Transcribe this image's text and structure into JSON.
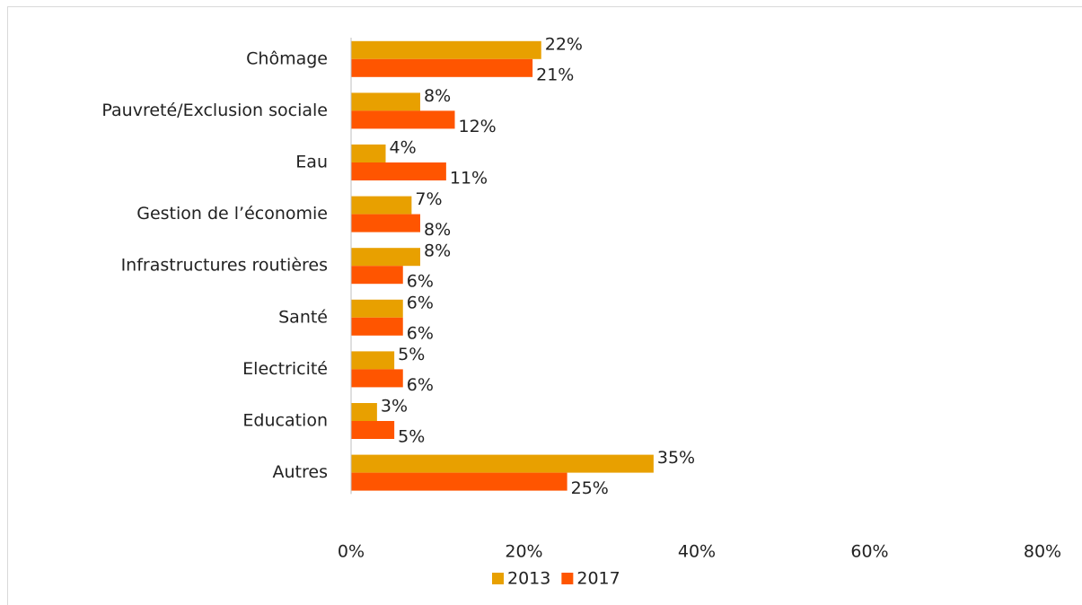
{
  "chart_data": {
    "type": "bar",
    "orientation": "horizontal",
    "categories": [
      "Chômage",
      "Pauvreté/Exclusion sociale",
      "Eau",
      "Gestion de l’économie",
      "Infrastructures routières",
      "Santé",
      "Electricité",
      "Education",
      "Autres"
    ],
    "series": [
      {
        "name": "2013",
        "color": "#e8a000",
        "values": [
          22,
          8,
          4,
          7,
          8,
          6,
          5,
          3,
          35
        ],
        "value_labels": [
          "22%",
          "8%",
          "4%",
          "7%",
          "8%",
          "6%",
          "5%",
          "3%",
          "35%"
        ]
      },
      {
        "name": "2017",
        "color": "#ff5500",
        "values": [
          21,
          12,
          11,
          8,
          6,
          6,
          6,
          5,
          25
        ],
        "value_labels": [
          "21%",
          "12%",
          "11%",
          "8%",
          "6%",
          "6%",
          "6%",
          "5%",
          "25%"
        ]
      }
    ],
    "xlim": [
      0,
      80
    ],
    "xticks": [
      {
        "value": 0,
        "label": "0%"
      },
      {
        "value": 20,
        "label": "20%"
      },
      {
        "value": 40,
        "label": "40%"
      },
      {
        "value": 60,
        "label": "60%"
      },
      {
        "value": 80,
        "label": "80%"
      }
    ],
    "legend": "bottom"
  }
}
